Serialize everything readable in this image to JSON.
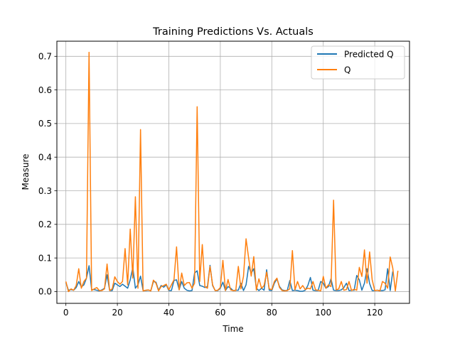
{
  "chart_data": {
    "type": "line",
    "title": "Training Predictions Vs. Actuals",
    "xlabel": "Time",
    "ylabel": "Measure",
    "xlim": [
      -3.5,
      133.5
    ],
    "ylim": [
      -0.035,
      0.745
    ],
    "xticks": [
      0,
      20,
      40,
      60,
      80,
      100,
      120
    ],
    "yticks": [
      0.0,
      0.1,
      0.2,
      0.3,
      0.4,
      0.5,
      0.6,
      0.7
    ],
    "ytick_labels": [
      "0.0",
      "0.1",
      "0.2",
      "0.3",
      "0.4",
      "0.5",
      "0.6",
      "0.7"
    ],
    "grid": true,
    "legend_position": "top-right",
    "series": [
      {
        "name": "Predicted Q",
        "color": "#1f77b4",
        "values": [
          0.027,
          0.004,
          0.006,
          0.004,
          0.012,
          0.03,
          0.014,
          0.02,
          0.04,
          0.077,
          0.006,
          0.006,
          0.004,
          0.002,
          0.005,
          0.01,
          0.05,
          0.003,
          0.003,
          0.025,
          0.02,
          0.015,
          0.022,
          0.016,
          0.01,
          0.035,
          0.072,
          0.01,
          0.02,
          0.046,
          0.003,
          0.003,
          0.004,
          0.003,
          0.03,
          0.028,
          0.004,
          0.018,
          0.013,
          0.02,
          0.003,
          0.003,
          0.033,
          0.035,
          0.006,
          0.03,
          0.01,
          0.004,
          0.002,
          0.003,
          0.055,
          0.062,
          0.018,
          0.016,
          0.012,
          0.015,
          0.078,
          0.018,
          0.003,
          0.003,
          0.01,
          0.028,
          0.003,
          0.015,
          0.01,
          0.003,
          0.004,
          0.004,
          0.025,
          0.003,
          0.02,
          0.075,
          0.055,
          0.068,
          0.01,
          0.003,
          0.01,
          0.004,
          0.065,
          0.004,
          0.003,
          0.025,
          0.038,
          0.015,
          0.005,
          0.003,
          0.003,
          0.033,
          0.003,
          0.004,
          0.003,
          0.001,
          0.001,
          0.004,
          0.018,
          0.042,
          0.004,
          0.003,
          0.003,
          0.03,
          0.025,
          0.01,
          0.015,
          0.038,
          0.004,
          0.003,
          0.003,
          0.005,
          0.012,
          0.025,
          0.003,
          0.004,
          0.004,
          0.048,
          0.035,
          0.004,
          0.025,
          0.068,
          0.024,
          0.003,
          0.003,
          0.004,
          0.003,
          0.003,
          0.005,
          0.068,
          0.003,
          0.06
        ]
      },
      {
        "name": "Q",
        "color": "#ff7f0e",
        "values": [
          0.03,
          0.0,
          0.008,
          0.004,
          0.018,
          0.068,
          0.01,
          0.03,
          0.04,
          0.712,
          0.003,
          0.008,
          0.012,
          0.003,
          0.003,
          0.008,
          0.082,
          0.003,
          0.008,
          0.044,
          0.03,
          0.022,
          0.03,
          0.128,
          0.02,
          0.186,
          0.04,
          0.282,
          0.01,
          0.482,
          0.002,
          0.004,
          0.005,
          0.002,
          0.034,
          0.025,
          0.002,
          0.015,
          0.018,
          0.022,
          0.005,
          0.02,
          0.035,
          0.133,
          0.005,
          0.055,
          0.018,
          0.026,
          0.027,
          0.01,
          0.025,
          0.55,
          0.03,
          0.14,
          0.015,
          0.01,
          0.075,
          0.02,
          0.003,
          0.004,
          0.012,
          0.093,
          0.003,
          0.036,
          0.005,
          0.003,
          0.003,
          0.075,
          0.008,
          0.045,
          0.157,
          0.1,
          0.046,
          0.104,
          0.004,
          0.038,
          0.01,
          0.018,
          0.058,
          0.008,
          0.006,
          0.03,
          0.04,
          0.012,
          0.003,
          0.002,
          0.003,
          0.008,
          0.122,
          0.005,
          0.03,
          0.008,
          0.018,
          0.006,
          0.01,
          0.008,
          0.03,
          0.005,
          0.004,
          0.002,
          0.045,
          0.01,
          0.02,
          0.015,
          0.272,
          0.005,
          0.008,
          0.03,
          0.004,
          0.006,
          0.03,
          0.003,
          0.007,
          0.004,
          0.072,
          0.045,
          0.124,
          0.025,
          0.118,
          0.035,
          0.003,
          0.004,
          0.002,
          0.03,
          0.025,
          0.01,
          0.103,
          0.07,
          0.002,
          0.062
        ]
      }
    ]
  }
}
